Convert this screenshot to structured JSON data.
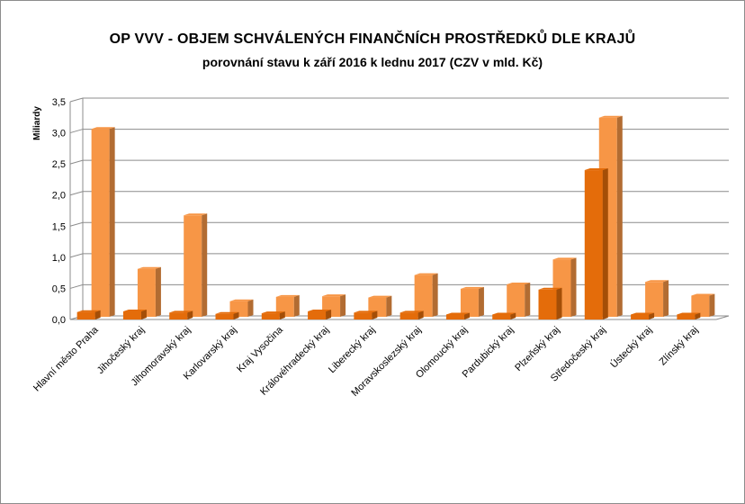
{
  "chart_data": {
    "type": "bar",
    "title": "OP VVV - OBJEM SCHVÁLENÝCH FINANČNÍCH PROSTŘEDKŮ DLE KRAJŮ",
    "subtitle": "porovnání stavu k září 2016 k lednu 2017 (CZV v mld. Kč)",
    "ylabel": "Miliardy",
    "xlabel": "",
    "ylim": [
      0,
      3.5
    ],
    "yticks": [
      "0,0",
      "0,5",
      "1,0",
      "1,5",
      "2,0",
      "2,5",
      "3,0",
      "3,5"
    ],
    "grid": true,
    "legend": "none",
    "categories": [
      "Hlavní město Praha",
      "Jihočeský kraj",
      "Jihomoravský kraj",
      "Karlovarský kraj",
      "Kraj Vysočina",
      "Královéhradecký kraj",
      "Liberecký kraj",
      "Moravskoslezský kraj",
      "Olomoucký kraj",
      "Pardubický kraj",
      "Plzeňský kraj",
      "Středočeský kraj",
      "Ústecký kraj",
      "Zlínský kraj"
    ],
    "series": [
      {
        "color": "#e46c0a",
        "values": [
          0.12,
          0.13,
          0.11,
          0.09,
          0.1,
          0.13,
          0.11,
          0.11,
          0.08,
          0.08,
          0.48,
          2.4,
          0.08,
          0.08
        ]
      },
      {
        "color": "#f79646",
        "values": [
          3.02,
          0.77,
          1.63,
          0.25,
          0.32,
          0.33,
          0.31,
          0.67,
          0.45,
          0.52,
          0.92,
          3.2,
          0.56,
          0.34
        ]
      }
    ]
  }
}
